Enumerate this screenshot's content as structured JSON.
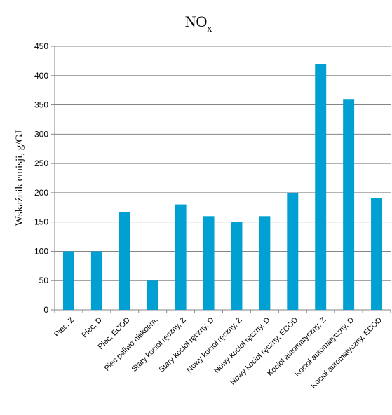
{
  "chart_data": {
    "type": "bar",
    "title": "NO",
    "title_subscript": "x",
    "ylabel": "Wskaźnik emisji, g/GJ",
    "xlabel": "",
    "ylim": [
      0,
      450
    ],
    "yticks": [
      0,
      50,
      100,
      150,
      200,
      250,
      300,
      350,
      400,
      450
    ],
    "grid": true,
    "legend": "none",
    "bar_color": "#00A0D2",
    "categories": [
      "Piec, Z",
      "Piec, D",
      "Piec, ECOD",
      "Piec paliwo niskoem.",
      "Stary kocioł ręczny, Z",
      "Stary kocioł ręczny, D",
      "Nowy kocioł ręczny, Z",
      "Nowy kocioł ręczny, D",
      "Nowy kocioł ręczny, ECOD",
      "Kocioł automatyczny,  Z",
      "Kocioł automatyczny,  D",
      "Kocioł automatyczny,  ECOD"
    ],
    "values": [
      100,
      100,
      167,
      50,
      180,
      160,
      150,
      160,
      200,
      420,
      360,
      191
    ]
  }
}
